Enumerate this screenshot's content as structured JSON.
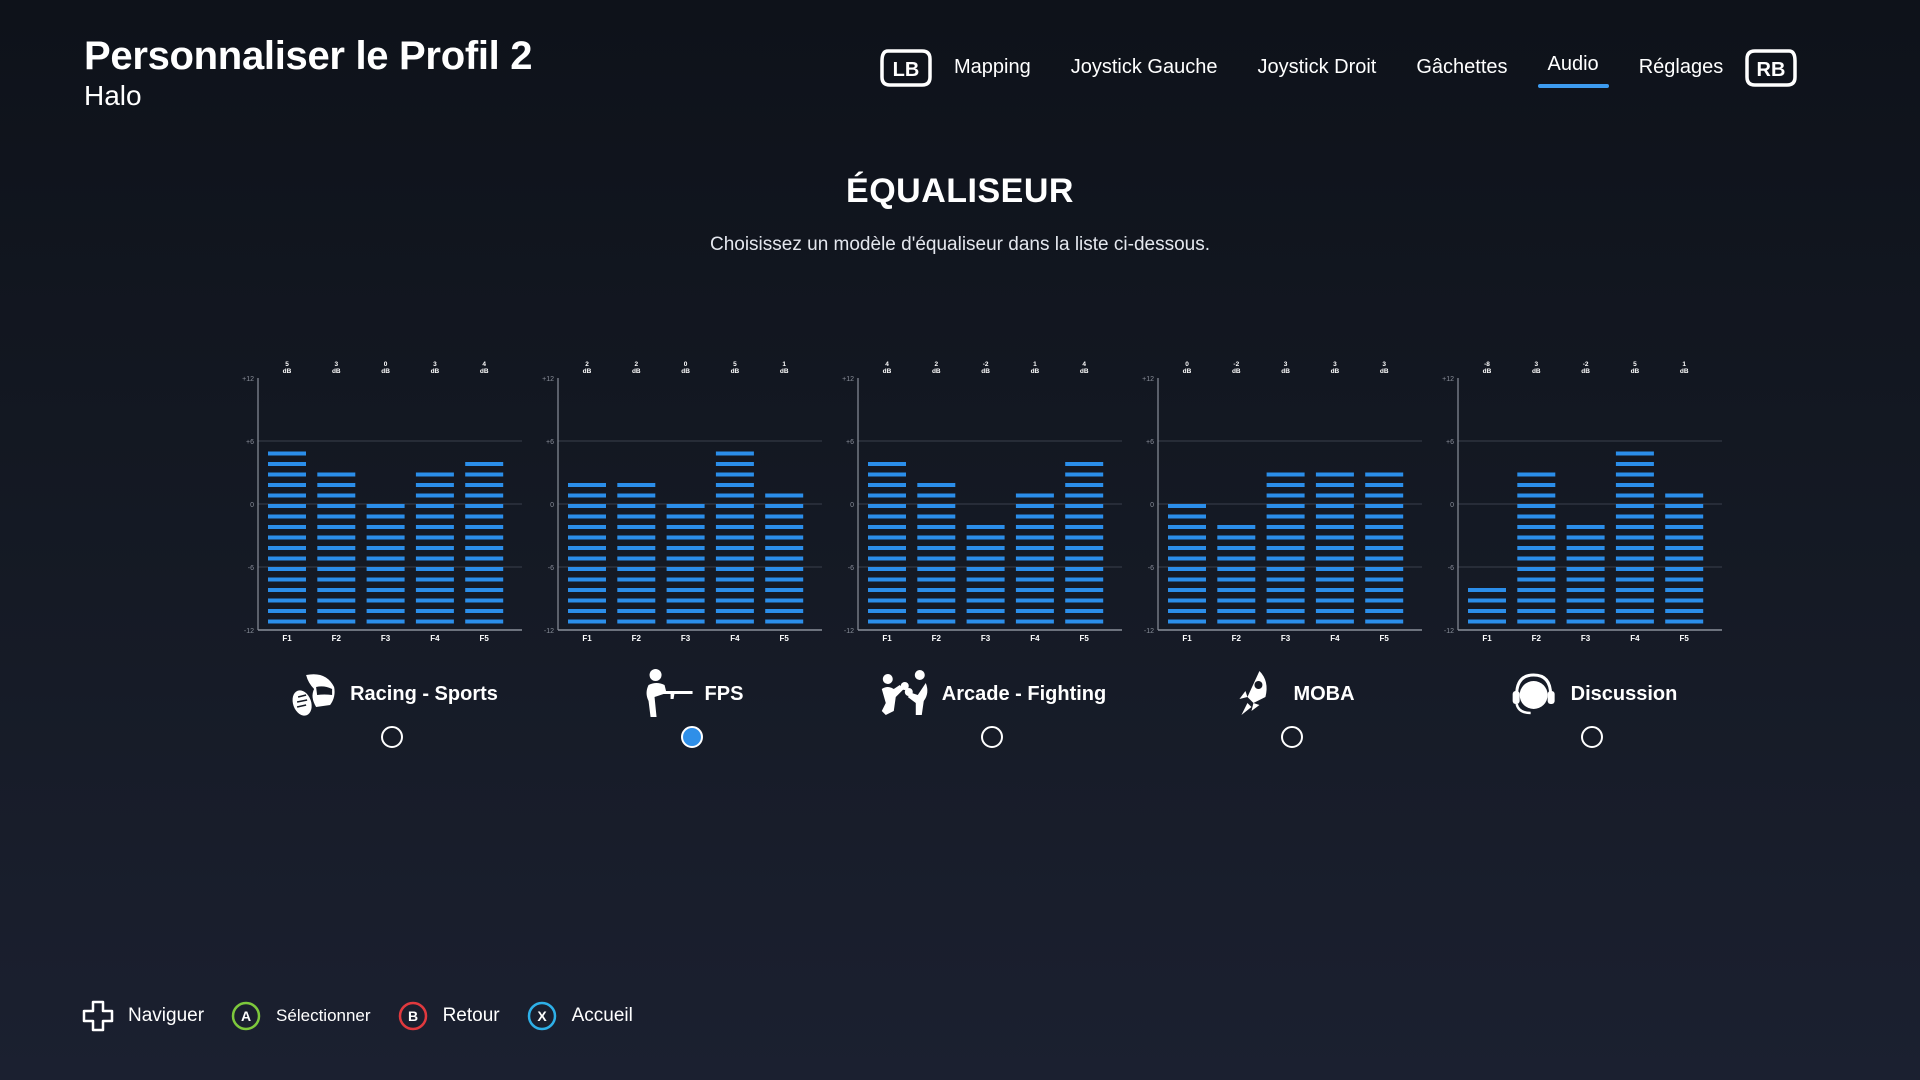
{
  "header": {
    "title": "Personnaliser le Profil 2",
    "subtitle": "Halo"
  },
  "nav": {
    "left_bumper": "LB",
    "right_bumper": "RB",
    "tabs": [
      {
        "label": "Mapping",
        "active": false
      },
      {
        "label": "Joystick Gauche",
        "active": false
      },
      {
        "label": "Joystick Droit",
        "active": false
      },
      {
        "label": "Gâchettes",
        "active": false
      },
      {
        "label": "Audio",
        "active": true
      },
      {
        "label": "Réglages",
        "active": false
      }
    ]
  },
  "main": {
    "title": "ÉQUALISEUR",
    "description": "Choisissez un modèle d'équaliseur dans la liste ci-dessous."
  },
  "colors": {
    "accent": "#3d9bf0",
    "bar": "#2b8eea",
    "axis": "#8a8f9a"
  },
  "chart_data": [
    {
      "type": "bar",
      "name": "Racing - Sports",
      "categories": [
        "F1",
        "F2",
        "F3",
        "F4",
        "F5"
      ],
      "values": [
        5,
        3,
        0,
        3,
        4
      ],
      "value_labels": [
        "5",
        "3",
        "0",
        "3",
        "4"
      ],
      "unit": "dB",
      "yticks": [
        "+12",
        "+6",
        "0",
        "-6",
        "-12"
      ],
      "ylim": [
        -12,
        12
      ],
      "grid": true
    },
    {
      "type": "bar",
      "name": "FPS",
      "categories": [
        "F1",
        "F2",
        "F3",
        "F4",
        "F5"
      ],
      "values": [
        2,
        2,
        0,
        5,
        1
      ],
      "value_labels": [
        "2",
        "2",
        "0",
        "5",
        "1"
      ],
      "unit": "dB",
      "yticks": [
        "+12",
        "+6",
        "0",
        "-6",
        "-12"
      ],
      "ylim": [
        -12,
        12
      ],
      "grid": true
    },
    {
      "type": "bar",
      "name": "Arcade - Fighting",
      "categories": [
        "F1",
        "F2",
        "F3",
        "F4",
        "F5"
      ],
      "values": [
        4,
        2,
        -2,
        1,
        4
      ],
      "value_labels": [
        "4",
        "2",
        "-2",
        "1",
        "4"
      ],
      "unit": "dB",
      "yticks": [
        "+12",
        "+6",
        "0",
        "-6",
        "-12"
      ],
      "ylim": [
        -12,
        12
      ],
      "grid": true
    },
    {
      "type": "bar",
      "name": "MOBA",
      "categories": [
        "F1",
        "F2",
        "F3",
        "F4",
        "F5"
      ],
      "values": [
        0,
        -2,
        3,
        3,
        3
      ],
      "value_labels": [
        "0",
        "-2",
        "3",
        "3",
        "3"
      ],
      "unit": "dB",
      "yticks": [
        "+12",
        "+6",
        "0",
        "-6",
        "-12"
      ],
      "ylim": [
        -12,
        12
      ],
      "grid": true
    },
    {
      "type": "bar",
      "name": "Discussion",
      "categories": [
        "F1",
        "F2",
        "F3",
        "F4",
        "F5"
      ],
      "values": [
        -8,
        3,
        -2,
        5,
        1
      ],
      "value_labels": [
        "-8",
        "3",
        "-2",
        "5",
        "1"
      ],
      "unit": "dB",
      "yticks": [
        "+12",
        "+6",
        "0",
        "-6",
        "-12"
      ],
      "ylim": [
        -12,
        12
      ],
      "grid": true
    }
  ],
  "presets": [
    {
      "label": "Racing - Sports",
      "icon": "racing-helmet-icon",
      "selected": false
    },
    {
      "label": "FPS",
      "icon": "soldier-rifle-icon",
      "selected": true
    },
    {
      "label": "Arcade - Fighting",
      "icon": "boxers-icon",
      "selected": false
    },
    {
      "label": "MOBA",
      "icon": "rocket-icon",
      "selected": false
    },
    {
      "label": "Discussion",
      "icon": "headset-icon",
      "selected": false
    }
  ],
  "footer": {
    "hints": [
      {
        "button": "",
        "icon": "dpad-icon",
        "label": "Naviguer"
      },
      {
        "button": "A",
        "icon": "a-button-icon",
        "label": "Sélectionner",
        "color": "#7dc83c"
      },
      {
        "button": "B",
        "icon": "b-button-icon",
        "label": "Retour",
        "color": "#e0393e"
      },
      {
        "button": "X",
        "icon": "x-button-icon",
        "label": "Accueil",
        "color": "#2eb0e8"
      }
    ]
  }
}
